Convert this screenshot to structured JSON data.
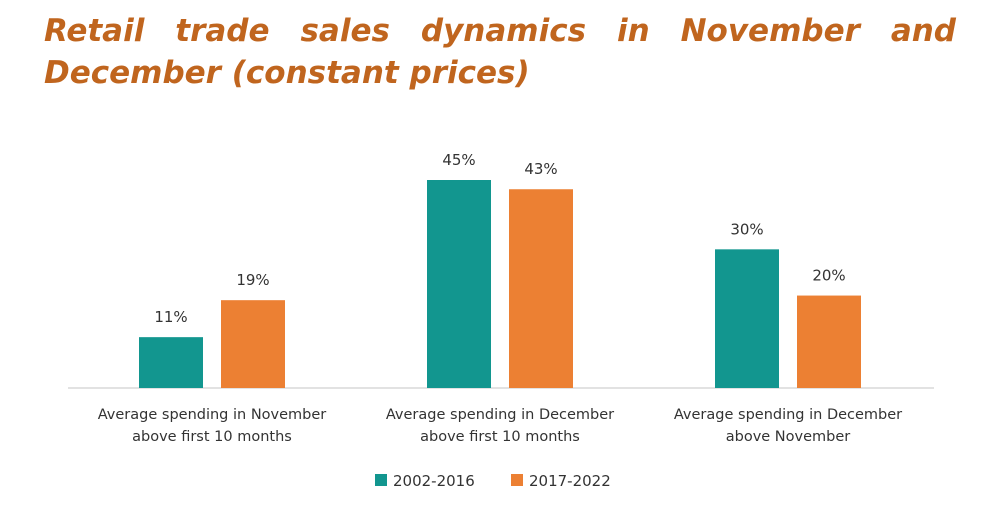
{
  "chart_data": {
    "type": "bar",
    "title": "Retail trade sales dynamics in November and December (constant prices)",
    "categories": [
      [
        "Average spending in November",
        "above first 10 months"
      ],
      [
        "Average spending in December",
        "above first 10 months"
      ],
      [
        "Average spending in December",
        "above November"
      ]
    ],
    "series": [
      {
        "name": "2002-2016",
        "values": [
          11,
          45,
          30
        ],
        "labels": [
          "11%",
          "45%",
          "30%"
        ],
        "color": "#12968f"
      },
      {
        "name": "2017-2022",
        "values": [
          19,
          43,
          20
        ],
        "labels": [
          "19%",
          "43%",
          "20%"
        ],
        "color": "#ec8033"
      }
    ],
    "ylim": [
      0,
      50
    ],
    "xlabel": "",
    "ylabel": "",
    "grid": false,
    "legend": "bottom-center"
  }
}
